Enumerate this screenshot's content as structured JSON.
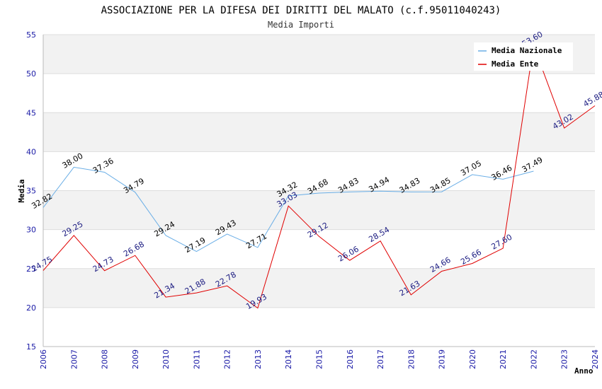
{
  "chart_data": {
    "type": "line",
    "title": "ASSOCIAZIONE PER LA DIFESA DEI DIRITTI DEL MALATO (c.f.95011040243)",
    "subtitle": "Media Importi",
    "xlabel": "Anno",
    "ylabel": "Media",
    "ylim": [
      15,
      55
    ],
    "yticks": [
      "15",
      "20",
      "25",
      "30",
      "35",
      "40",
      "45",
      "50",
      "55"
    ],
    "categories": [
      "2006",
      "2007",
      "2008",
      "2009",
      "2010",
      "2011",
      "2012",
      "2013",
      "2014",
      "2015",
      "2016",
      "2017",
      "2018",
      "2019",
      "2020",
      "2021",
      "2022",
      "2023",
      "2024"
    ],
    "legend_position": "top-right",
    "series": [
      {
        "name": "Media Nazionale",
        "color": "#6aaee6",
        "values": [
          32.82,
          38.0,
          37.36,
          34.79,
          29.24,
          27.19,
          29.43,
          27.71,
          34.32,
          34.68,
          34.83,
          34.94,
          34.83,
          34.85,
          37.05,
          36.46,
          37.49,
          null,
          null
        ],
        "labels": [
          "32.82",
          "38.00",
          "37.36",
          "34.79",
          "29.24",
          "27.19",
          "29.43",
          "27.71",
          "34.32",
          "34.68",
          "34.83",
          "34.94",
          "34.83",
          "34.85",
          "37.05",
          "36.46",
          "37.49",
          null,
          null
        ]
      },
      {
        "name": "Media Ente",
        "color": "#e00000",
        "values": [
          24.75,
          29.25,
          24.73,
          26.68,
          21.34,
          21.88,
          22.78,
          19.93,
          33.03,
          29.12,
          26.06,
          28.54,
          21.63,
          24.66,
          25.66,
          27.6,
          53.6,
          43.02,
          45.88
        ],
        "labels": [
          "24.75",
          "29.25",
          "24.73",
          "26.68",
          "21.34",
          "21.88",
          "22.78",
          "19.93",
          "33.03",
          "29.12",
          "26.06",
          "28.54",
          "21.63",
          "24.66",
          "25.66",
          "27.60",
          "53.60",
          "43.02",
          "45.88"
        ]
      }
    ]
  }
}
